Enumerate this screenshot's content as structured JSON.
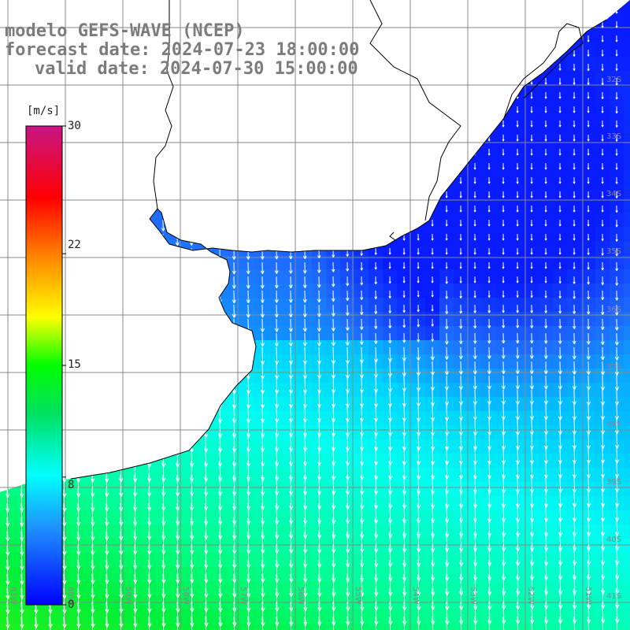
{
  "title": {
    "line1": "modelo GEFS-WAVE (NCEP)",
    "line2": "forecast date: 2024-07-23 18:00:00",
    "line3": "valid date: 2024-07-30 15:00:00"
  },
  "colorbar": {
    "units": "[m/s]",
    "ticks": [
      {
        "value": 30,
        "label": "30"
      },
      {
        "value": 22,
        "label": "22"
      },
      {
        "value": 15,
        "label": "15"
      },
      {
        "value": 8,
        "label": "8"
      },
      {
        "value": 0,
        "label": "0"
      }
    ],
    "min": 0,
    "max": 30,
    "colors": [
      "#0000ff",
      "#1e90ff",
      "#00ffff",
      "#00ff00",
      "#ffff00",
      "#ff8c00",
      "#ff0000",
      "#c71585"
    ]
  },
  "map": {
    "lon_labels": [
      "61W",
      "60W",
      "59W",
      "58W",
      "57W",
      "56W",
      "55W",
      "54W",
      "53W",
      "52W",
      "51W"
    ],
    "lat_labels": [
      "32S",
      "33S",
      "34S",
      "35S",
      "36S",
      "37S",
      "38S",
      "39S",
      "40S",
      "41S"
    ],
    "lon_range": [
      -61,
      -50
    ],
    "lat_range": [
      -42,
      -30
    ],
    "ocean_color": "#22c840",
    "land_color": "#ffffff",
    "coast_color": "#000000",
    "grid_color": "#888888",
    "wind_direction": "from north-northwest"
  }
}
